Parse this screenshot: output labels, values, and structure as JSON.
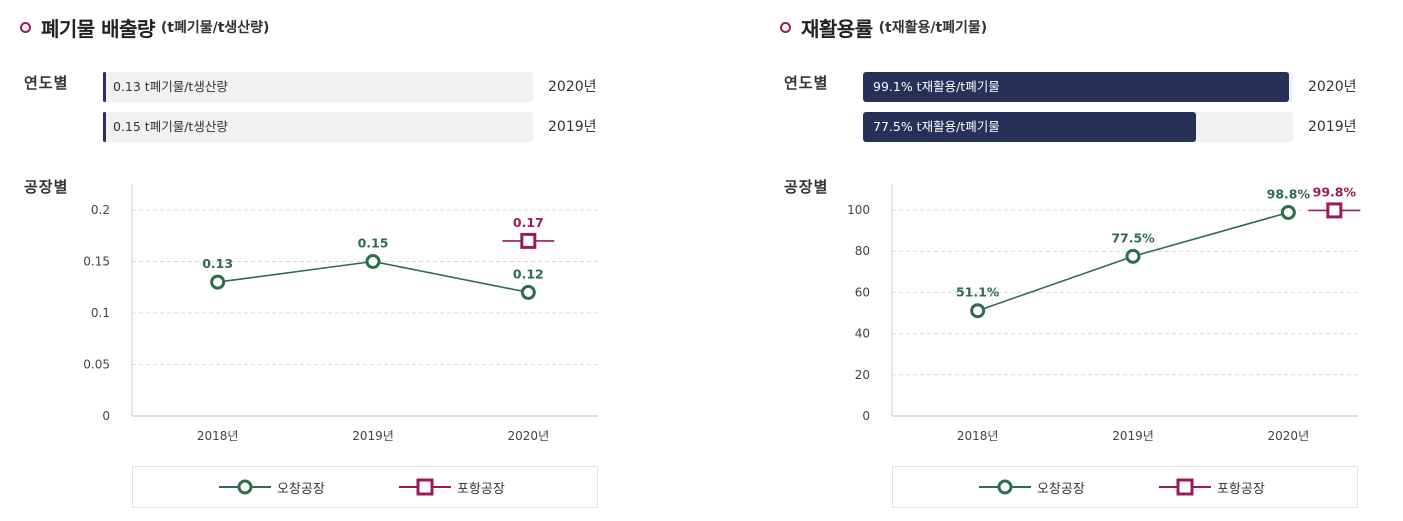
{
  "left": {
    "title": "폐기물 배출량",
    "subtitle": "(t폐기물/t생산량)",
    "yearly_label": "연도별",
    "factory_label": "공장별",
    "bars": [
      {
        "text": "0.13 t폐기물/t생산량",
        "year": "2020년",
        "fraction": 0.0
      },
      {
        "text": "0.15 t폐기물/t생산량",
        "year": "2019년",
        "fraction": 0.0
      }
    ],
    "legend": {
      "series1": "오창공장",
      "series2": "포항공장"
    }
  },
  "right": {
    "title": "재활용률",
    "subtitle": "(t재활용/t폐기물)",
    "yearly_label": "연도별",
    "factory_label": "공장별",
    "bars": [
      {
        "text": "99.1% t재활용/t폐기물",
        "year": "2020년",
        "fraction": 0.991
      },
      {
        "text": "77.5% t재활용/t폐기물",
        "year": "2019년",
        "fraction": 0.775
      }
    ],
    "legend": {
      "series1": "오창공장",
      "series2": "포항공장"
    }
  },
  "colors": {
    "green": "#2f6b4f",
    "magenta": "#9b1b5a",
    "navy": "#263059"
  },
  "chart_data": [
    {
      "type": "line",
      "categories": [
        "2018년",
        "2019년",
        "2020년"
      ],
      "series": [
        {
          "name": "오창공장",
          "values": [
            0.13,
            0.15,
            0.12
          ],
          "labels": [
            "0.13",
            "0.15",
            "0.12"
          ]
        },
        {
          "name": "포항공장",
          "values": [
            null,
            null,
            0.17
          ],
          "labels": [
            "",
            "",
            "0.17"
          ]
        }
      ],
      "ylim": [
        0,
        0.2
      ],
      "yticks": [
        0,
        0.05,
        0.1,
        0.15,
        0.2
      ],
      "ytick_labels": [
        "0",
        "0.05",
        "0.1",
        "0.15",
        "0.2"
      ],
      "grid": true,
      "legend": "bottom"
    },
    {
      "type": "line",
      "categories": [
        "2018년",
        "2019년",
        "2020년"
      ],
      "series": [
        {
          "name": "오창공장",
          "values": [
            51.1,
            77.5,
            98.8
          ],
          "labels": [
            "51.1%",
            "77.5%",
            "98.8%"
          ]
        },
        {
          "name": "포항공장",
          "values": [
            null,
            null,
            99.8
          ],
          "labels": [
            "",
            "",
            "99.8%"
          ]
        }
      ],
      "ylim": [
        0,
        110
      ],
      "yticks": [
        0,
        20,
        40,
        60,
        80,
        100
      ],
      "ytick_labels": [
        "0",
        "20",
        "40",
        "60",
        "80",
        "100"
      ],
      "grid": true,
      "legend": "bottom"
    }
  ]
}
